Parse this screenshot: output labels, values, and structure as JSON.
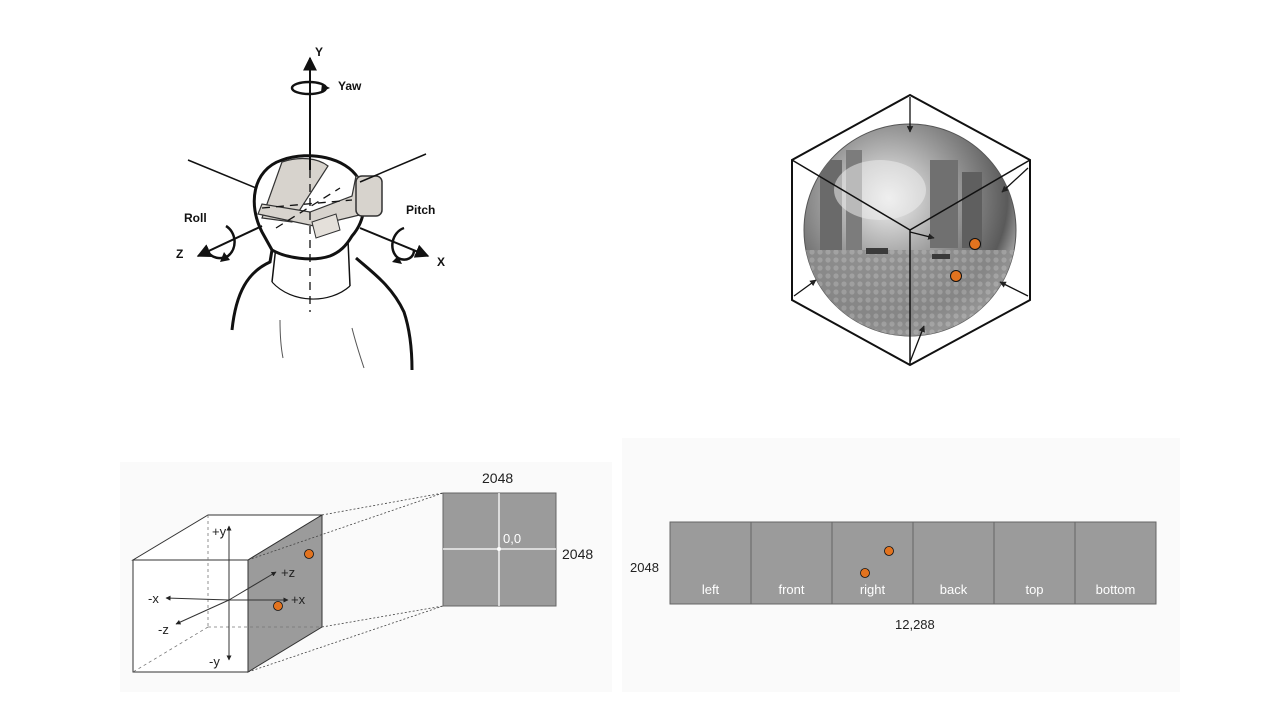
{
  "colors": {
    "face_gray": "#9b9b9b",
    "marker_orange": "#e2731f",
    "line": "#111111",
    "panel_bg": "#fafafa"
  },
  "head_diagram": {
    "axis_y": "Y",
    "axis_x": "X",
    "axis_z": "Z",
    "yaw": "Yaw",
    "pitch": "Pitch",
    "roll": "Roll"
  },
  "cube_diagram": {
    "axis_pos_y": "+y",
    "axis_neg_y": "-y",
    "axis_pos_x": "+x",
    "axis_neg_x": "-x",
    "axis_pos_z": "+z",
    "axis_neg_z": "-z",
    "face_width": "2048",
    "face_height": "2048",
    "origin": "0,0"
  },
  "strip_diagram": {
    "height": "2048",
    "width": "12,288",
    "faces": [
      "left",
      "front",
      "right",
      "back",
      "top",
      "bottom"
    ]
  }
}
